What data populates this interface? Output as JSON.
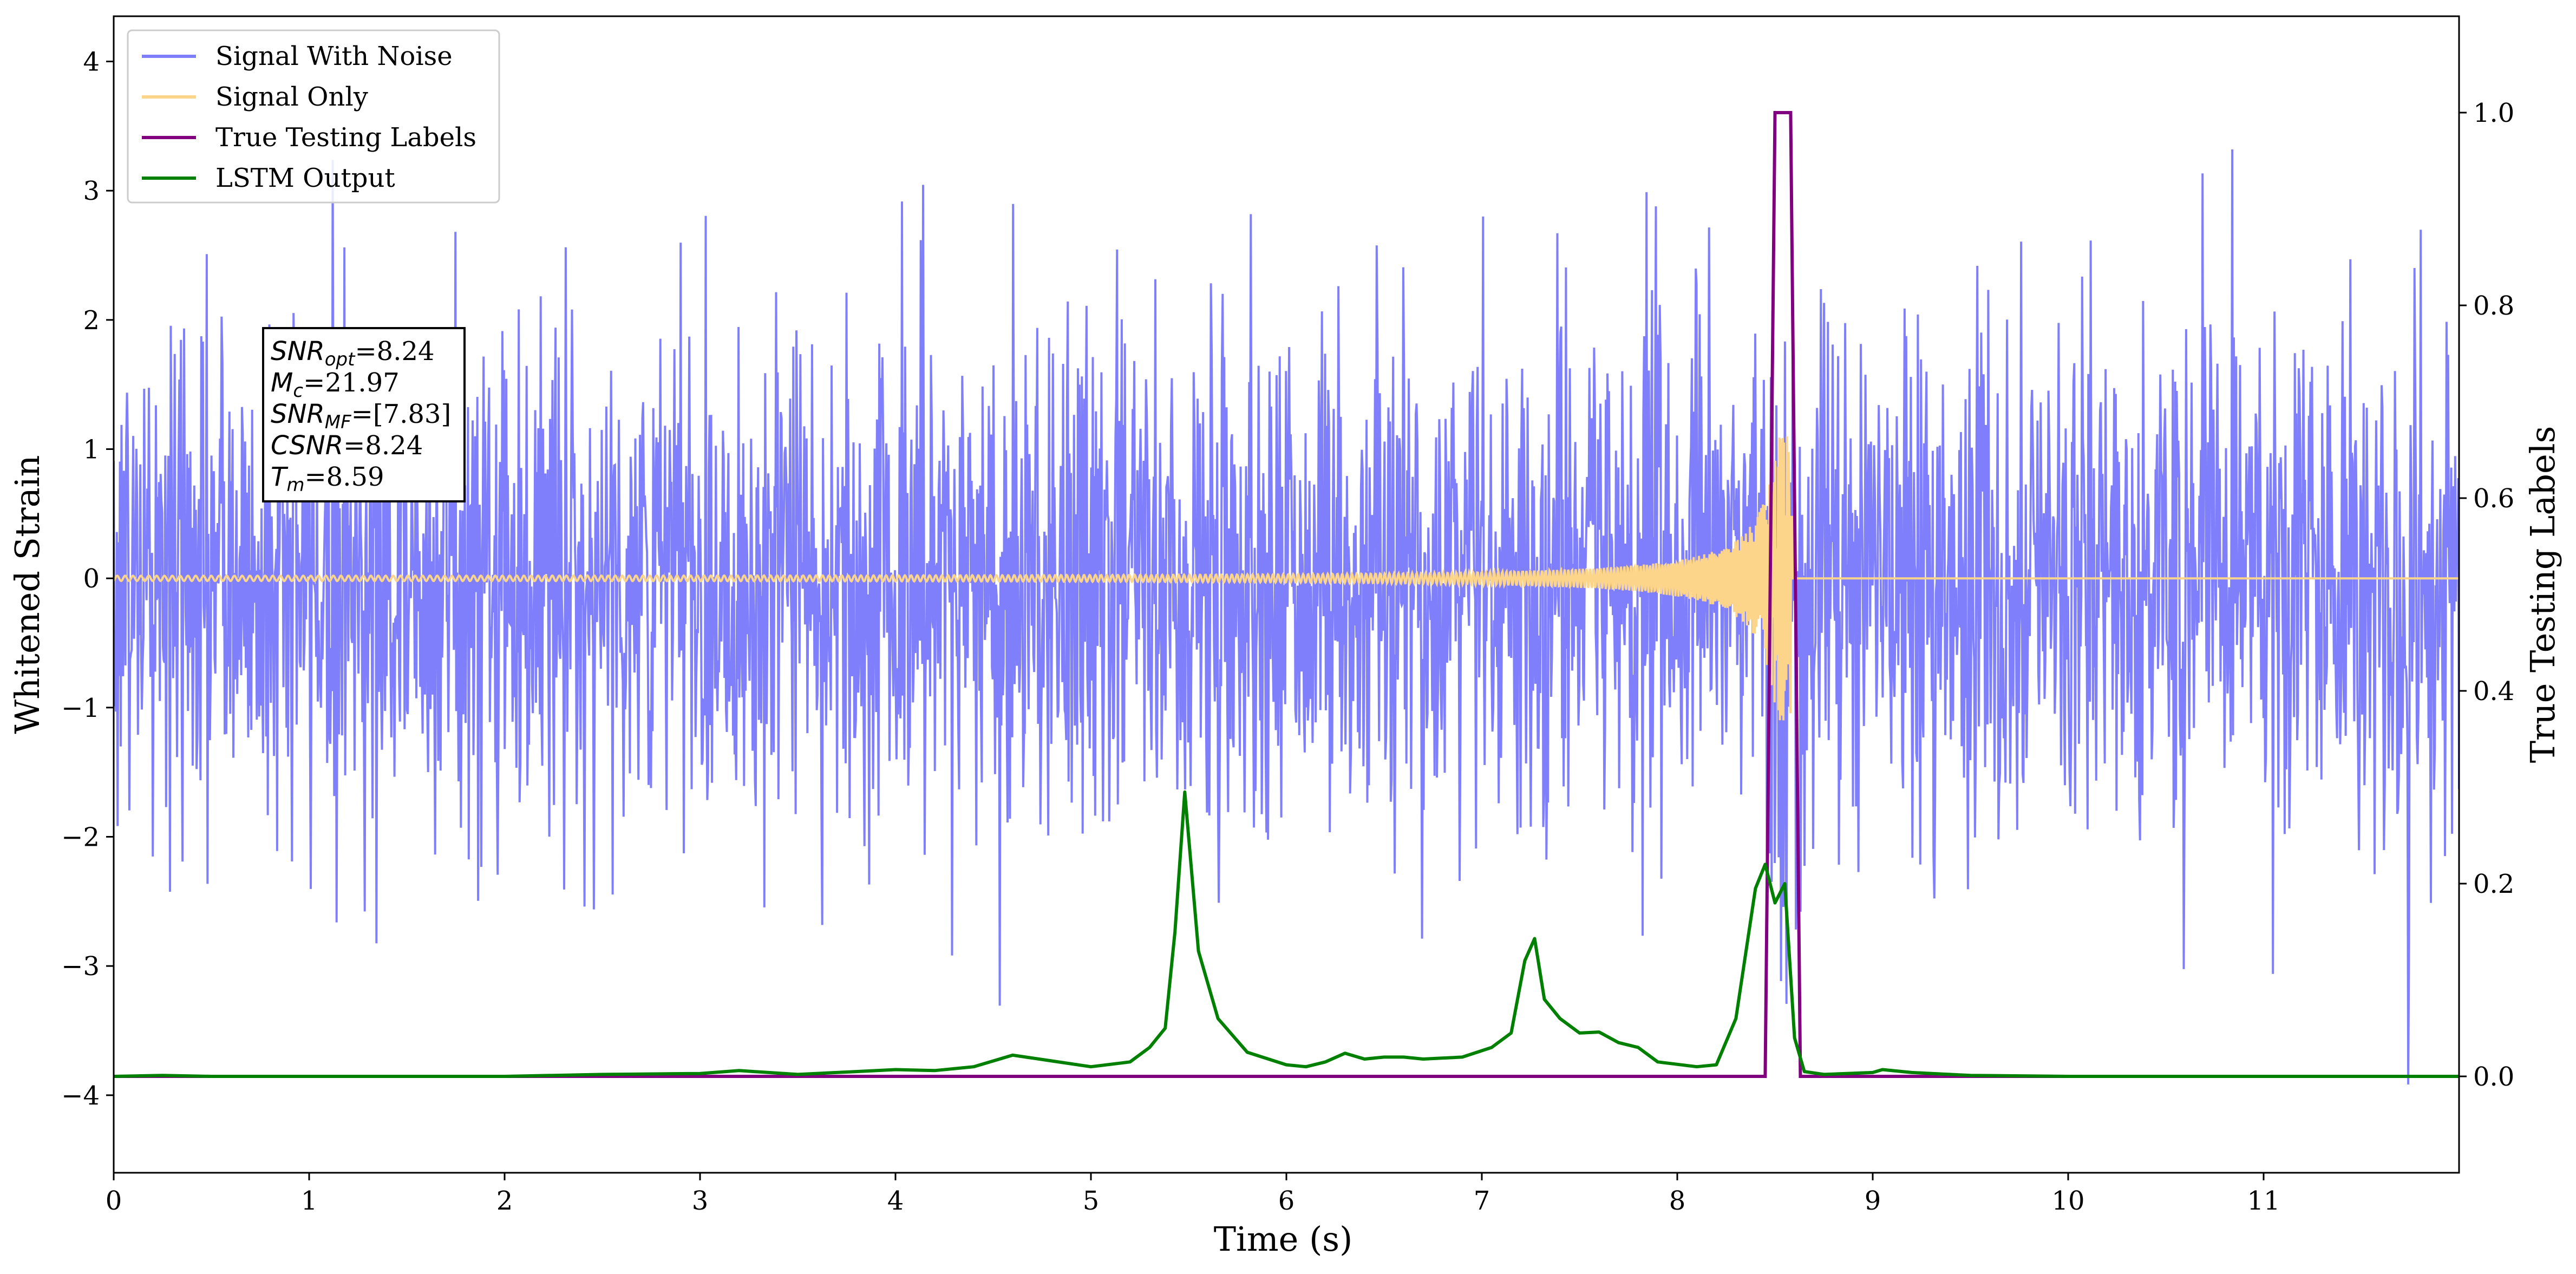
{
  "chart_data": {
    "type": "line",
    "xlabel": "Time (s)",
    "ylabel": "Whitened Strain",
    "y2label": "True Testing Labels",
    "xlim": [
      0,
      12.0
    ],
    "ylim": [
      -4.6,
      4.35
    ],
    "y2lim": [
      -0.1,
      1.1
    ],
    "xticks": [
      0,
      1,
      2,
      3,
      4,
      5,
      6,
      7,
      8,
      9,
      10,
      11
    ],
    "xtick_labels": [
      "0",
      "1",
      "2",
      "3",
      "4",
      "5",
      "6",
      "7",
      "8",
      "9",
      "10",
      "11"
    ],
    "yticks": [
      -4,
      -3,
      -2,
      -1,
      0,
      1,
      2,
      3,
      4
    ],
    "ytick_labels": [
      "−4",
      "−3",
      "−2",
      "−1",
      "0",
      "1",
      "2",
      "3",
      "4"
    ],
    "y2ticks": [
      0.0,
      0.2,
      0.4,
      0.6,
      0.8,
      1.0
    ],
    "y2tick_labels": [
      "0.0",
      "0.2",
      "0.4",
      "0.6",
      "0.8",
      "1.0"
    ],
    "grid": false,
    "legend": {
      "position": "top-left",
      "entries": [
        {
          "label": "Signal With Noise",
          "color": "#7f7ffb"
        },
        {
          "label": "Signal Only",
          "color": "#fdd58a"
        },
        {
          "label": "True Testing Labels",
          "color": "#800080"
        },
        {
          "label": "LSTM Output",
          "color": "#008000"
        }
      ]
    },
    "annotation": {
      "lines": [
        {
          "main": "SNR",
          "sub": "opt",
          "value": "=8.24"
        },
        {
          "main": "M",
          "sub": "c",
          "value": "=21.97"
        },
        {
          "main": "SNR",
          "sub": "MF",
          "value": "=[7.83]"
        },
        {
          "main": "CSNR",
          "sub": "",
          "value": "=8.24"
        },
        {
          "main": "T",
          "sub": "m",
          "value": "=8.59"
        }
      ]
    },
    "series": [
      {
        "name": "Signal With Noise",
        "axis": "left",
        "color": "#7f7ffb",
        "noise": {
          "sigma": 1.0,
          "n_samples": 3000,
          "min": -4.22,
          "max": 3.5
        }
      },
      {
        "name": "Signal Only",
        "axis": "left",
        "color": "#fdd58a",
        "chirp": {
          "start": 0,
          "merger": 8.59,
          "base_amplitude": 0.02,
          "peak_amplitude": 1.1
        }
      },
      {
        "name": "True Testing Labels",
        "axis": "right",
        "color": "#800080",
        "x": [
          0,
          8.45,
          8.5,
          8.58,
          8.63,
          12.0
        ],
        "values": [
          0,
          0,
          1,
          1,
          0,
          0
        ]
      },
      {
        "name": "LSTM Output",
        "axis": "right",
        "color": "#008000",
        "x": [
          0,
          0.25,
          0.5,
          1.0,
          2.0,
          2.5,
          3.0,
          3.2,
          3.5,
          3.8,
          4.0,
          4.2,
          4.4,
          4.6,
          4.8,
          5.0,
          5.2,
          5.3,
          5.38,
          5.43,
          5.48,
          5.55,
          5.65,
          5.8,
          6.0,
          6.1,
          6.2,
          6.3,
          6.4,
          6.5,
          6.6,
          6.7,
          6.9,
          7.05,
          7.15,
          7.22,
          7.27,
          7.32,
          7.4,
          7.5,
          7.6,
          7.7,
          7.8,
          7.9,
          8.1,
          8.2,
          8.3,
          8.4,
          8.45,
          8.5,
          8.55,
          8.6,
          8.65,
          8.75,
          9.0,
          9.05,
          9.2,
          9.5,
          10.0,
          12.0
        ],
        "values": [
          0,
          0.001,
          0,
          0,
          0,
          0.002,
          0.003,
          0.006,
          0.002,
          0.005,
          0.007,
          0.006,
          0.01,
          0.022,
          0.016,
          0.01,
          0.015,
          0.03,
          0.05,
          0.15,
          0.295,
          0.13,
          0.06,
          0.025,
          0.012,
          0.01,
          0.015,
          0.024,
          0.018,
          0.02,
          0.02,
          0.018,
          0.02,
          0.03,
          0.045,
          0.12,
          0.143,
          0.08,
          0.06,
          0.045,
          0.046,
          0.035,
          0.03,
          0.015,
          0.01,
          0.012,
          0.06,
          0.195,
          0.22,
          0.18,
          0.2,
          0.04,
          0.005,
          0.002,
          0.004,
          0.007,
          0.004,
          0.001,
          0,
          0
        ]
      }
    ]
  }
}
